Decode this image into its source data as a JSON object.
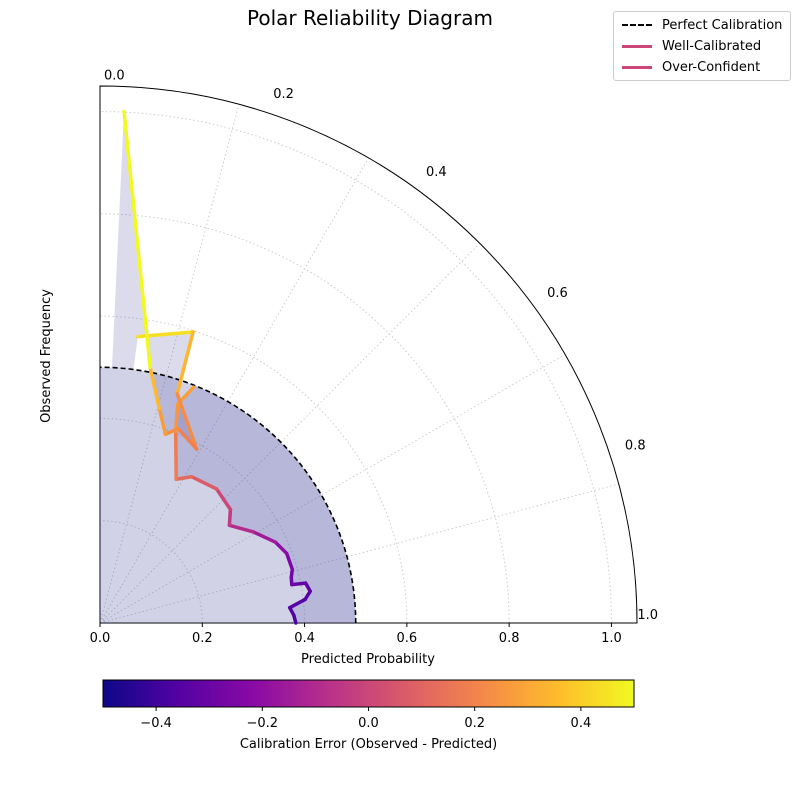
{
  "chart_data": {
    "type": "polar-line",
    "title": "Polar Reliability Diagram",
    "xlabel": "Predicted Probability",
    "ylabel": "Observed Frequency",
    "x_ticks": [
      "0.0",
      "0.2",
      "0.4",
      "0.6",
      "0.8",
      "1.0"
    ],
    "radial_ticks": [
      "0.0",
      "0.2",
      "0.4",
      "0.6",
      "0.8",
      "1.0"
    ],
    "xlim": [
      0,
      1.05
    ],
    "grid": true,
    "legend": {
      "position": "top-right",
      "entries": [
        {
          "label": "Perfect Calibration",
          "style": "dashed",
          "color": "#000000"
        },
        {
          "label": "Well-Calibrated",
          "style": "solid",
          "color": "#cc4778"
        },
        {
          "label": "Over-Confident",
          "style": "solid",
          "color": "#cc4778"
        }
      ]
    },
    "perfect_calibration": {
      "radius": 0.5,
      "theta_range": [
        0,
        90
      ]
    },
    "series": [
      {
        "name": "Well-Calibrated",
        "x": [
          0.383,
          0.379,
          0.371,
          0.401,
          0.411,
          0.402,
          0.375,
          0.374,
          0.376,
          0.365,
          0.343,
          0.3,
          0.253,
          0.255,
          0.228,
          0.179,
          0.149,
          0.148,
          0.152,
          0.183
        ],
        "y": [
          0.0,
          0.015,
          0.03,
          0.046,
          0.062,
          0.078,
          0.075,
          0.089,
          0.105,
          0.136,
          0.158,
          0.178,
          0.191,
          0.222,
          0.262,
          0.286,
          0.281,
          0.375,
          0.428,
          0.461
        ]
      },
      {
        "name": "Over-Confident",
        "x": [
          0.074,
          0.182,
          0.151,
          0.189,
          0.153,
          0.128,
          0.116,
          0.098,
          0.047
        ],
        "y": [
          0.56,
          0.569,
          0.448,
          0.34,
          0.38,
          0.369,
          0.419,
          0.5,
          1.0
        ]
      }
    ],
    "colorbar": {
      "label": "Calibration Error (Observed - Predicted)",
      "range": [
        -0.5,
        0.5
      ],
      "ticks": [
        "−0.4",
        "−0.2",
        "0.0",
        "0.2",
        "0.4"
      ],
      "tick_values": [
        -0.4,
        -0.2,
        0.0,
        0.2,
        0.4
      ],
      "colormap": "plasma"
    }
  }
}
